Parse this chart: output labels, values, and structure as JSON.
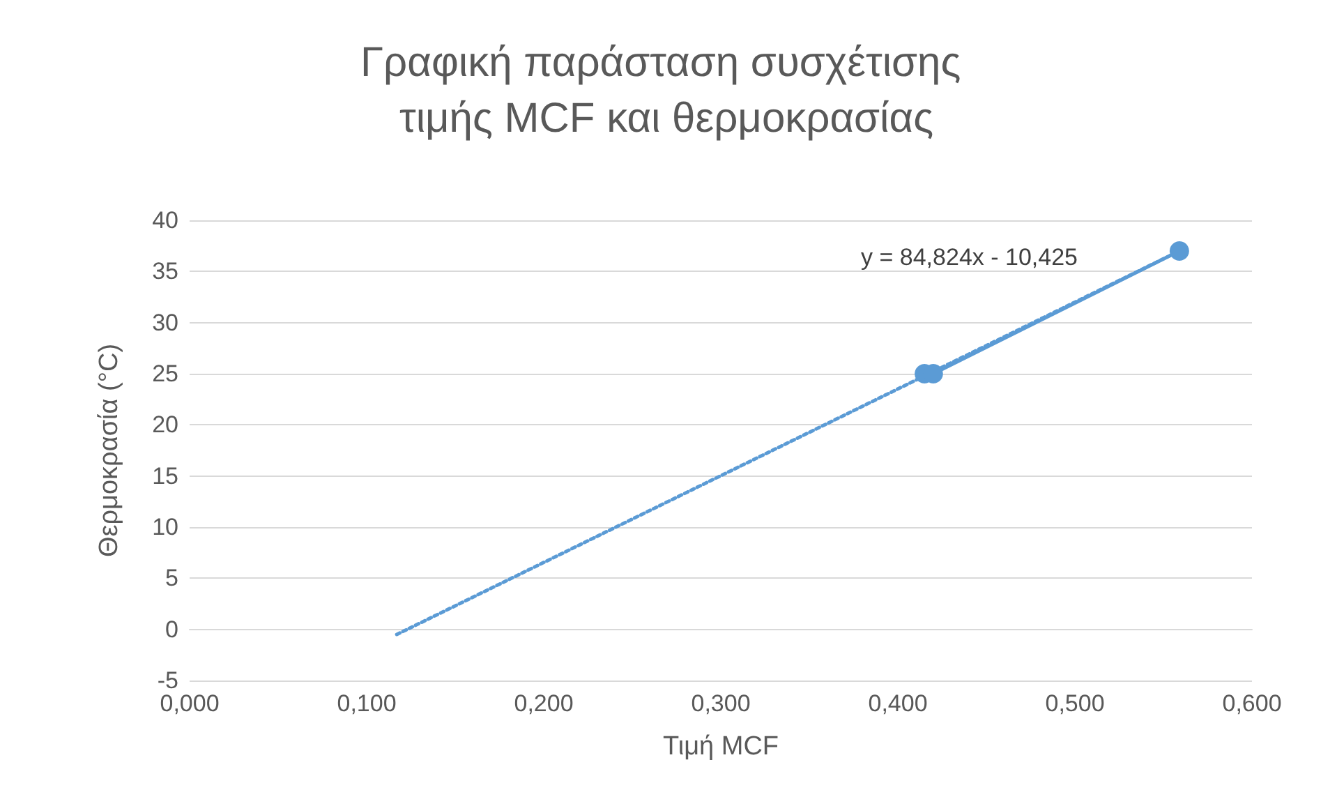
{
  "chart_data": {
    "type": "line",
    "title": "Γραφική παράσταση συσχέτισης τιμής MCF και θερμοκρασίας",
    "xlabel": "Τιμή MCF",
    "ylabel": "Θερμοκρασία (°C)",
    "series": [
      {
        "color": "#5b9bd5",
        "x": [
          0.415,
          0.42,
          0.559
        ],
        "values": [
          25,
          25,
          37
        ],
        "marker": "circle",
        "line_style": "solid"
      },
      {
        "color": "#5b9bd5",
        "x": [
          0.117,
          0.559
        ],
        "values": [
          -0.5,
          37
        ],
        "marker": "none",
        "line_style": "dotted"
      }
    ],
    "annotations": [
      "y = 84,824x - 10,425"
    ],
    "xlim": [
      0,
      0.6
    ],
    "xticks": [
      {
        "value": 0,
        "label": "0,000"
      },
      {
        "value": 0.1,
        "label": "0,100"
      },
      {
        "value": 0.2,
        "label": "0,200"
      },
      {
        "value": 0.3,
        "label": "0,300"
      },
      {
        "value": 0.4,
        "label": "0,400"
      },
      {
        "value": 0.5,
        "label": "0,500"
      },
      {
        "value": 0.6,
        "label": "0,600"
      }
    ],
    "ylim": [
      -5,
      40
    ],
    "yticks": [
      -5,
      0,
      5,
      10,
      15,
      20,
      25,
      30,
      35,
      40
    ],
    "grid": "y"
  }
}
